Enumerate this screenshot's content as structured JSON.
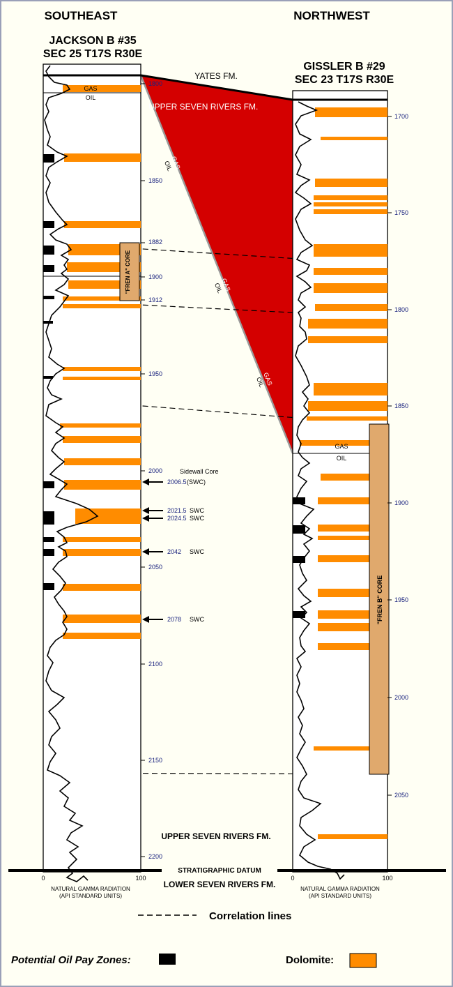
{
  "header": {
    "left": "SOUTHEAST",
    "right": "NORTHWEST"
  },
  "wells": {
    "left": {
      "name": "JACKSON B #35",
      "location": "SEC 25 T17S R30E",
      "depth_labels": [
        "1800",
        "1850",
        "1882",
        "1900",
        "1912",
        "1950",
        "2000",
        "2050",
        "2100",
        "2150",
        "2200"
      ],
      "gas_label": "GAS",
      "oil_label": "OIL",
      "core_label": "\"FREN A\" CORE",
      "axis_min": "0",
      "axis_max": "100",
      "axis_title_line1": "NATURAL GAMMA RADIATION",
      "axis_title_line2": "(API STANDARD UNITS)"
    },
    "right": {
      "name": "GISSLER B #29",
      "location": "SEC 23 T17S R30E",
      "depth_labels": [
        "1700",
        "1750",
        "1800",
        "1850",
        "1900",
        "1950",
        "2000",
        "2050"
      ],
      "gas_label": "GAS",
      "oil_label": "OIL",
      "core_label": "\"FREN B\" CORE",
      "axis_min": "0",
      "axis_max": "100",
      "axis_title_line1": "NATURAL GAMMA RADIATION",
      "axis_title_line2": "(API STANDARD UNITS)"
    }
  },
  "formations": {
    "yates": "YATES FM.",
    "upper_seven_rivers_top": "UPPER SEVEN RIVERS FM.",
    "upper_seven_rivers_bottom": "UPPER SEVEN RIVERS FM.",
    "datum": "STRATIGRAPHIC DATUM",
    "lower_seven_rivers": "LOWER SEVEN RIVERS FM."
  },
  "contacts": {
    "gas1": "GAS",
    "oil1": "OIL",
    "gas2": "GAS",
    "oil2": "OIL",
    "gas3": "GAS",
    "oil3": "OIL"
  },
  "sidewall_cores": {
    "title": "Sidewall Core",
    "items": [
      {
        "depth": "2006.5",
        "label": "(SWC)"
      },
      {
        "depth": "2021.5",
        "label": "SWC"
      },
      {
        "depth": "2024.5",
        "label": "SWC"
      },
      {
        "depth": "2042",
        "label": "SWC"
      },
      {
        "depth": "2078",
        "label": "SWC"
      }
    ]
  },
  "legend": {
    "correlation": "Correlation lines",
    "pay_zones": "Potential Oil Pay Zones:",
    "dolomite": "Dolomite:"
  },
  "colors": {
    "dolomite": "#ff8c00",
    "gas_wedge": "#d40000",
    "core": "#e0a96d",
    "background": "#fffff4"
  }
}
